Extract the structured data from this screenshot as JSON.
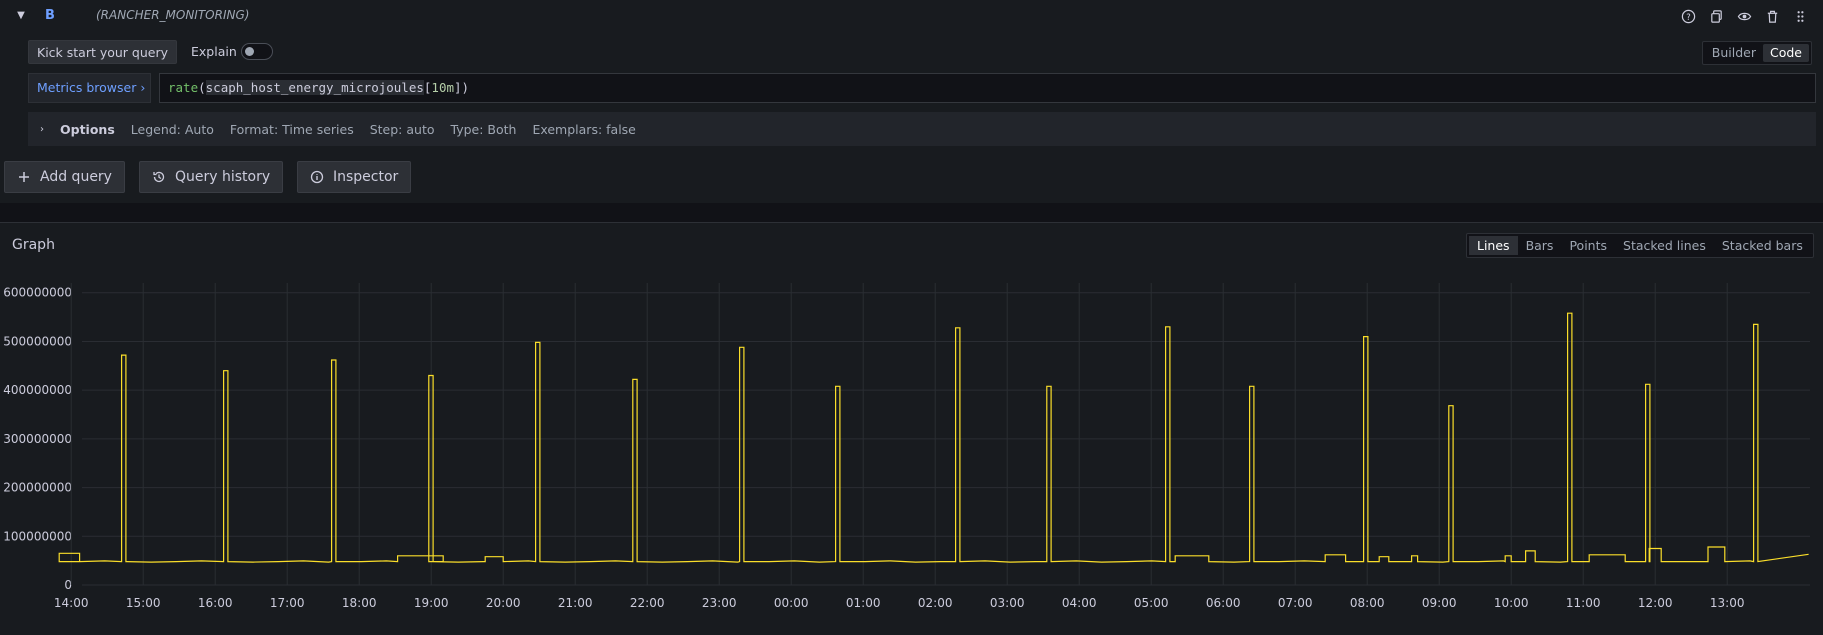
{
  "query": {
    "ref_id": "B",
    "datasource": "(RANCHER_MONITORING)",
    "header_icons": [
      "help-icon",
      "duplicate-icon",
      "eye-icon",
      "trash-icon",
      "drag-handle-icon"
    ]
  },
  "editor": {
    "kick_start_label": "Kick start your query",
    "explain_label": "Explain",
    "explain_on": false,
    "modes": [
      "Builder",
      "Code"
    ],
    "active_mode": "Code",
    "metrics_browser_label": "Metrics browser",
    "query_fn": "rate",
    "query_metric": "scaph_host_energy_microjoules",
    "query_range": "10m",
    "options": {
      "title": "Options",
      "legend": "Legend: Auto",
      "format": "Format: Time series",
      "step": "Step: auto",
      "type": "Type: Both",
      "exemplars": "Exemplars: false"
    }
  },
  "actions": {
    "add_query": "Add query",
    "query_history": "Query history",
    "inspector": "Inspector"
  },
  "graph": {
    "title": "Graph",
    "types": [
      "Lines",
      "Bars",
      "Points",
      "Stacked lines",
      "Stacked bars"
    ],
    "active_type": "Lines",
    "line_color": "#fade2a"
  },
  "chart_data": {
    "type": "line",
    "x_ticks": [
      "15:00",
      "16:00",
      "17:00",
      "18:00",
      "19:00",
      "20:00",
      "21:00",
      "22:00",
      "23:00",
      "00:00",
      "01:00",
      "02:00",
      "03:00",
      "04:00",
      "05:00",
      "06:00",
      "07:00",
      "08:00",
      "09:00",
      "10:00",
      "11:00",
      "12:00",
      "13:00",
      "14:00"
    ],
    "y_ticks": [
      0,
      100000000,
      200000000,
      300000000,
      400000000,
      500000000,
      600000000
    ],
    "y_tick_labels": [
      "0",
      "100000000",
      "200000000",
      "300000000",
      "400000000",
      "500000000",
      "600000000"
    ],
    "ylim": [
      0,
      620000000
    ],
    "xlim_hours": [
      14.15,
      38.15
    ],
    "grid": true,
    "baseline": 48000000,
    "spikes": [
      {
        "x": "14:42",
        "value": 472000000
      },
      {
        "x": "16:07",
        "value": 440000000
      },
      {
        "x": "17:37",
        "value": 462000000
      },
      {
        "x": "18:58",
        "value": 430000000
      },
      {
        "x": "20:27",
        "value": 498000000
      },
      {
        "x": "21:48",
        "value": 422000000
      },
      {
        "x": "23:17",
        "value": 488000000
      },
      {
        "x": "00:37",
        "value": 408000000
      },
      {
        "x": "02:17",
        "value": 528000000
      },
      {
        "x": "03:33",
        "value": 408000000
      },
      {
        "x": "05:12",
        "value": 530000000
      },
      {
        "x": "06:22",
        "value": 408000000
      },
      {
        "x": "07:57",
        "value": 510000000
      },
      {
        "x": "09:08",
        "value": 368000000
      },
      {
        "x": "10:47",
        "value": 558000000
      },
      {
        "x": "11:52",
        "value": 412000000
      },
      {
        "x": "13:22",
        "value": 535000000
      }
    ],
    "bumps": [
      {
        "from": "18:32",
        "to": "19:10",
        "value": 60000000
      },
      {
        "from": "19:45",
        "to": "20:00",
        "value": 58000000
      },
      {
        "from": "05:20",
        "to": "05:48",
        "value": 60000000
      },
      {
        "from": "07:25",
        "to": "07:42",
        "value": 62000000
      },
      {
        "from": "08:10",
        "to": "08:18",
        "value": 58000000
      },
      {
        "from": "08:37",
        "to": "08:42",
        "value": 60000000
      },
      {
        "from": "09:55",
        "to": "10:00",
        "value": 60000000
      },
      {
        "from": "10:12",
        "to": "10:20",
        "value": 70000000
      },
      {
        "from": "11:05",
        "to": "11:35",
        "value": 62000000
      },
      {
        "from": "11:55",
        "to": "12:05",
        "value": 75000000
      },
      {
        "from": "12:44",
        "to": "12:58",
        "value": 78000000
      },
      {
        "from": "13:50",
        "to": "14:07",
        "value": 65000000
      }
    ]
  }
}
